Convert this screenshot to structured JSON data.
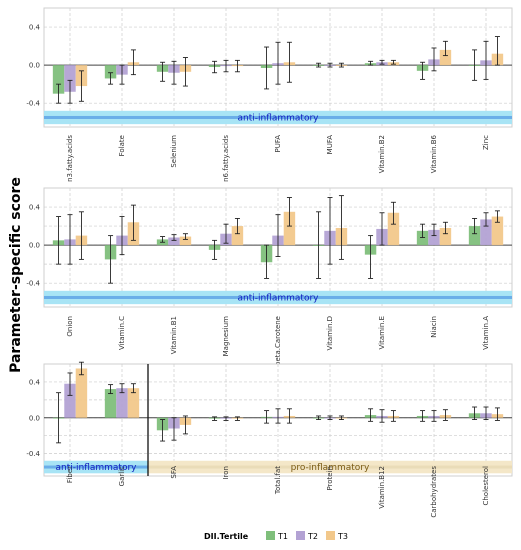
{
  "y_axis_label": "Parameter-specific score",
  "legend": {
    "title": "DII.Tertile",
    "items": [
      {
        "name": "T1",
        "color": "#7fbf7b"
      },
      {
        "name": "T2",
        "color": "#b3a2d4"
      },
      {
        "name": "T3",
        "color": "#f2c88b"
      }
    ]
  },
  "chart_data": [
    {
      "type": "bar",
      "ylim": [
        -0.65,
        0.6
      ],
      "yticks": [
        -0.4,
        0.0,
        0.4
      ],
      "ytick_labels": [
        "-0.4",
        "0.0",
        "0.4"
      ],
      "categories": [
        "n3.fatty.acids",
        "Folate",
        "Selenium",
        "n6.fatty.acids",
        "PUFA",
        "MUFA",
        "Vitamin.B2",
        "Vitamin.B6",
        "Zinc"
      ],
      "series": [
        {
          "name": "T1",
          "values": [
            -0.3,
            -0.14,
            -0.07,
            -0.02,
            -0.03,
            0.0,
            0.02,
            -0.06,
            0.0
          ],
          "err_low": [
            -0.4,
            -0.2,
            -0.17,
            -0.08,
            -0.25,
            -0.02,
            0.0,
            -0.15,
            -0.16
          ],
          "err_high": [
            -0.2,
            -0.08,
            0.03,
            0.04,
            0.19,
            0.02,
            0.04,
            0.03,
            0.16
          ]
        },
        {
          "name": "T2",
          "values": [
            -0.28,
            -0.1,
            -0.08,
            -0.01,
            0.02,
            0.0,
            0.03,
            0.06,
            0.05
          ],
          "err_low": [
            -0.4,
            -0.2,
            -0.2,
            -0.07,
            -0.2,
            -0.02,
            0.01,
            -0.06,
            -0.15
          ],
          "err_high": [
            -0.16,
            0.0,
            0.04,
            0.05,
            0.24,
            0.02,
            0.05,
            0.18,
            0.25
          ]
        },
        {
          "name": "T3",
          "values": [
            -0.22,
            0.03,
            -0.07,
            -0.01,
            0.03,
            0.0,
            0.03,
            0.16,
            0.12
          ],
          "err_low": [
            -0.38,
            -0.1,
            -0.22,
            -0.07,
            -0.18,
            -0.02,
            0.01,
            0.1,
            0.0
          ],
          "err_high": [
            -0.06,
            0.16,
            0.08,
            0.05,
            0.24,
            0.02,
            0.05,
            0.25,
            0.3
          ]
        }
      ],
      "bands": [
        {
          "label": "anti-inflammatory",
          "from": "n3.fatty.acids",
          "to": "Zinc",
          "y_from": -0.62,
          "y_to": -0.48,
          "fill": "#a8e4f5",
          "line": "#6aaee8",
          "text_color": "#1020c0"
        }
      ]
    },
    {
      "type": "bar",
      "ylim": [
        -0.65,
        0.6
      ],
      "yticks": [
        -0.4,
        -0.2,
        0.0,
        0.2,
        0.4
      ],
      "ytick_labels": [
        "-0.4",
        "",
        "0.0",
        "",
        "0.4"
      ],
      "categories": [
        "Onion",
        "Vitamin.C",
        "Vitamin.B1",
        "Magnesium",
        "beta.Carotene",
        "Vitamin.D",
        "Vitamin.E",
        "Niacin",
        "Vitamin.A"
      ],
      "series": [
        {
          "name": "T1",
          "values": [
            0.05,
            -0.15,
            0.06,
            -0.05,
            -0.18,
            0.0,
            -0.1,
            0.15,
            0.2
          ],
          "err_low": [
            -0.2,
            -0.4,
            0.03,
            -0.15,
            -0.35,
            -0.35,
            -0.35,
            0.08,
            0.12
          ],
          "err_high": [
            0.3,
            0.1,
            0.09,
            0.05,
            0.0,
            0.35,
            0.1,
            0.22,
            0.28
          ]
        },
        {
          "name": "T2",
          "values": [
            0.06,
            0.1,
            0.08,
            0.12,
            0.1,
            0.15,
            0.17,
            0.16,
            0.27
          ],
          "err_low": [
            -0.2,
            -0.1,
            0.05,
            0.02,
            -0.12,
            -0.2,
            0.0,
            0.1,
            0.2
          ],
          "err_high": [
            0.32,
            0.3,
            0.11,
            0.22,
            0.32,
            0.5,
            0.34,
            0.22,
            0.34
          ]
        },
        {
          "name": "T3",
          "values": [
            0.1,
            0.24,
            0.09,
            0.2,
            0.35,
            0.18,
            0.34,
            0.18,
            0.3
          ],
          "err_low": [
            -0.15,
            0.05,
            0.06,
            0.12,
            0.2,
            -0.15,
            0.22,
            0.12,
            0.24
          ],
          "err_high": [
            0.35,
            0.42,
            0.12,
            0.28,
            0.5,
            0.52,
            0.45,
            0.24,
            0.36
          ]
        }
      ],
      "bands": [
        {
          "label": "anti-inflammatory",
          "from": "Onion",
          "to": "Vitamin.A",
          "y_from": -0.62,
          "y_to": -0.48,
          "fill": "#a8e4f5",
          "line": "#6aaee8",
          "text_color": "#1020c0"
        }
      ]
    },
    {
      "type": "bar",
      "ylim": [
        -0.65,
        0.6
      ],
      "yticks": [
        -0.4,
        -0.2,
        0.0,
        0.2,
        0.4
      ],
      "ytick_labels": [
        "-0.4",
        "",
        "0.0",
        "",
        "0.4"
      ],
      "categories": [
        "Fiber",
        "Garlic",
        "SFA",
        "Iron",
        "Total.fat",
        "Protein",
        "Vitamin.B12",
        "Carbohydrates",
        "Cholesterol"
      ],
      "series": [
        {
          "name": "T1",
          "values": [
            0.0,
            0.32,
            -0.14,
            -0.01,
            0.01,
            0.0,
            0.03,
            0.02,
            0.05
          ],
          "err_low": [
            -0.28,
            0.27,
            -0.26,
            -0.03,
            -0.06,
            -0.02,
            -0.04,
            -0.04,
            -0.02
          ],
          "err_high": [
            0.28,
            0.37,
            -0.02,
            0.01,
            0.08,
            0.02,
            0.1,
            0.08,
            0.12
          ]
        },
        {
          "name": "T2",
          "values": [
            0.38,
            0.33,
            -0.12,
            -0.01,
            0.01,
            0.0,
            0.02,
            0.02,
            0.05
          ],
          "err_low": [
            0.25,
            0.28,
            -0.25,
            -0.03,
            -0.06,
            -0.02,
            -0.05,
            -0.04,
            -0.02
          ],
          "err_high": [
            0.5,
            0.38,
            0.0,
            0.01,
            0.1,
            0.02,
            0.09,
            0.08,
            0.12
          ]
        },
        {
          "name": "T3",
          "values": [
            0.55,
            0.33,
            -0.08,
            -0.01,
            0.02,
            0.0,
            0.02,
            0.03,
            0.04
          ],
          "err_low": [
            0.48,
            0.28,
            -0.18,
            -0.03,
            -0.06,
            -0.02,
            -0.04,
            -0.03,
            -0.03
          ],
          "err_high": [
            0.62,
            0.38,
            0.02,
            0.01,
            0.1,
            0.02,
            0.08,
            0.09,
            0.11
          ]
        }
      ],
      "bands": [
        {
          "label": "anti-inflammatory",
          "from": "Fiber",
          "to": "Garlic",
          "y_from": -0.62,
          "y_to": -0.48,
          "fill": "#a8e4f5",
          "line": "#6aaee8",
          "text_color": "#1020c0"
        },
        {
          "label": "pro-inflammatory",
          "from": "SFA",
          "to": "Cholesterol",
          "y_from": -0.62,
          "y_to": -0.48,
          "fill": "#f4e7c8",
          "line": "#eadcb8",
          "text_color": "#7a5b14"
        }
      ],
      "separator_after": "Garlic"
    }
  ]
}
